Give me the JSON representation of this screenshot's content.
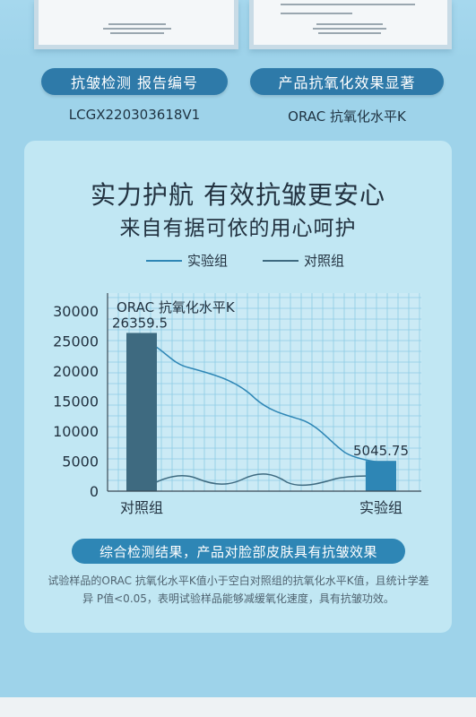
{
  "badges": {
    "left_title": "抗皱检测 报告编号",
    "left_value": "LCGX220303618V1",
    "right_title": "产品抗氧化效果显著",
    "right_value": "ORAC 抗氧化水平K"
  },
  "heading": {
    "line1": "实力护航 有效抗皱更安心",
    "line2": "来自有据可依的用心呵护"
  },
  "colors": {
    "experiment": "#2e86b5",
    "control": "#3e6a80",
    "bar_control": "#3e6a80",
    "bar_experiment": "#2e86b5"
  },
  "chart_data": {
    "type": "bar",
    "title": "ORAC 抗氧化水平K",
    "categories": [
      "对照组",
      "实验组"
    ],
    "values": [
      26359.5,
      5045.75
    ],
    "value_labels": [
      "26359.5",
      "5045.75"
    ],
    "yticks": [
      "0",
      "5000",
      "10000",
      "15000",
      "20000",
      "25000",
      "30000"
    ],
    "ylim": [
      0,
      33000
    ],
    "grid": true,
    "legend": [
      {
        "name": "实验组",
        "position": "top-left"
      },
      {
        "name": "对照组",
        "position": "top-right"
      }
    ]
  },
  "result": {
    "title": "综合检测结果，产品对脸部皮肤具有抗皱效果",
    "description": "试验样品的ORAC 抗氧化水平K值小于空白对照组的抗氧化水平K值，且统计学差异 P值<0.05，表明试验样品能够减缓氧化速度，具有抗皱功效。"
  }
}
